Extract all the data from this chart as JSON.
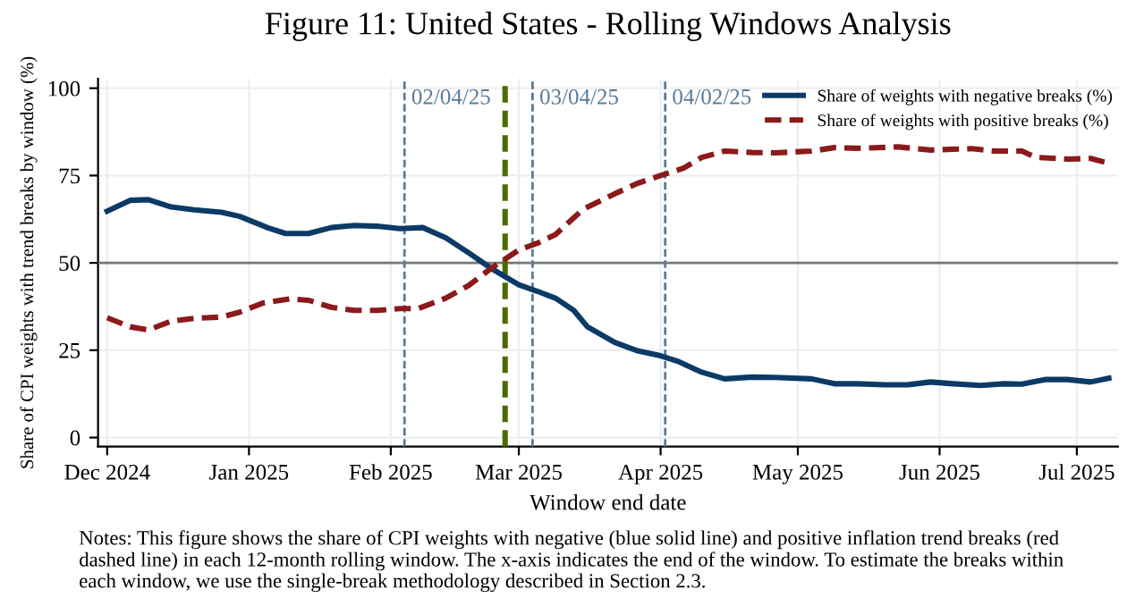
{
  "chart_data": {
    "type": "line",
    "title": "Figure 11: United States - Rolling Windows Analysis",
    "xlabel": "Window end date",
    "ylabel": "Share of CPI weights with trend breaks by window (%)",
    "series": [
      {
        "name": "Share of weights with negative breaks (%)",
        "color": "#0b3a66",
        "line_style": "solid",
        "x": [
          "2024-12-01",
          "2024-12-06",
          "2024-12-10",
          "2024-12-15",
          "2024-12-20",
          "2024-12-26",
          "2024-12-30",
          "2025-01-05",
          "2025-01-09",
          "2025-01-14",
          "2025-01-19",
          "2025-01-24",
          "2025-01-29",
          "2025-02-03",
          "2025-02-08",
          "2025-02-13",
          "2025-02-18",
          "2025-02-23",
          "2025-03-01",
          "2025-03-05",
          "2025-03-09",
          "2025-03-13",
          "2025-03-16",
          "2025-03-22",
          "2025-03-27",
          "2025-04-01",
          "2025-04-05",
          "2025-04-10",
          "2025-04-15",
          "2025-04-21",
          "2025-04-26",
          "2025-05-04",
          "2025-05-09",
          "2025-05-14",
          "2025-05-20",
          "2025-05-25",
          "2025-05-30",
          "2025-06-04",
          "2025-06-10",
          "2025-06-15",
          "2025-06-19",
          "2025-06-24",
          "2025-06-29",
          "2025-07-04",
          "2025-07-08"
        ],
        "values": [
          64.8,
          67.9,
          68.1,
          66,
          65.2,
          64.5,
          63.3,
          60.1,
          58.4,
          58.4,
          60.1,
          60.7,
          60.5,
          59.8,
          60.1,
          57.2,
          52.9,
          48.4,
          43.7,
          41.9,
          39.9,
          36.4,
          31.7,
          27.2,
          24.8,
          23.4,
          21.7,
          18.7,
          16.8,
          17.3,
          17.2,
          16.8,
          15.4,
          15.4,
          15.1,
          15.1,
          15.9,
          15.4,
          14.9,
          15.4,
          15.3,
          16.6,
          16.6,
          15.9,
          17
        ]
      },
      {
        "name": "Share of weights with positive breaks (%)",
        "color": "#8b1a1a",
        "line_style": "dashed",
        "x": [
          "2024-12-01",
          "2024-12-06",
          "2024-12-10",
          "2024-12-15",
          "2024-12-20",
          "2024-12-26",
          "2024-12-30",
          "2025-01-04",
          "2025-01-10",
          "2025-01-14",
          "2025-01-19",
          "2025-01-24",
          "2025-01-29",
          "2025-02-03",
          "2025-02-07",
          "2025-02-13",
          "2025-02-18",
          "2025-02-23",
          "2025-03-01",
          "2025-03-05",
          "2025-03-09",
          "2025-03-15",
          "2025-03-22",
          "2025-03-27",
          "2025-04-01",
          "2025-04-06",
          "2025-04-10",
          "2025-04-15",
          "2025-04-21",
          "2025-04-26",
          "2025-05-04",
          "2025-05-09",
          "2025-05-14",
          "2025-05-23",
          "2025-05-30",
          "2025-06-08",
          "2025-06-13",
          "2025-06-19",
          "2025-06-22",
          "2025-06-29",
          "2025-07-04",
          "2025-07-08"
        ],
        "values": [
          34.3,
          31.7,
          30.8,
          33.3,
          34.1,
          34.5,
          35.9,
          38.5,
          39.7,
          39.3,
          37.3,
          36.4,
          36.4,
          36.9,
          36.9,
          39.9,
          43.5,
          48.5,
          53.7,
          55.6,
          58.1,
          65.3,
          69.8,
          72.8,
          75,
          77.1,
          80.2,
          82,
          81.6,
          81.5,
          82,
          83,
          82.8,
          83.2,
          82.3,
          82.7,
          82,
          82,
          80.2,
          79.7,
          79.9,
          78.5
        ]
      }
    ],
    "xlim": [
      "2024-11-29",
      "2025-07-10"
    ],
    "xticks": [
      {
        "value": "2024-12-01",
        "label": "Dec 2024"
      },
      {
        "value": "2025-01-01",
        "label": "Jan 2025"
      },
      {
        "value": "2025-02-01",
        "label": "Feb 2025"
      },
      {
        "value": "2025-03-01",
        "label": "Mar 2025"
      },
      {
        "value": "2025-04-01",
        "label": "Apr 2025"
      },
      {
        "value": "2025-05-01",
        "label": "May 2025"
      },
      {
        "value": "2025-06-01",
        "label": "Jun 2025"
      },
      {
        "value": "2025-07-01",
        "label": "Jul 2025"
      }
    ],
    "ylim": [
      -2.6,
      102.7
    ],
    "yticks": [
      0,
      25,
      50,
      75,
      100
    ],
    "ref_lines": [
      {
        "axis": "y",
        "value": 50,
        "label": null,
        "color": "#777777",
        "line_style": "solid"
      },
      {
        "axis": "x",
        "value": "2025-02-04",
        "label": "02/04/25",
        "color": "#5a7a99",
        "line_style": "dashed"
      },
      {
        "axis": "x",
        "value": "2025-02-26",
        "label": null,
        "color": "#4d6b00",
        "line_style": "dashed"
      },
      {
        "axis": "x",
        "value": "2025-03-04",
        "label": "03/04/25",
        "color": "#5a7a99",
        "line_style": "dashed"
      },
      {
        "axis": "x",
        "value": "2025-04-02",
        "label": "04/02/25",
        "color": "#5a7a99",
        "line_style": "dashed"
      }
    ],
    "grid": true,
    "legend": "top right",
    "annotations": [
      "Notes: This figure shows the share of CPI weights with negative (blue solid line) and positive inflation trend breaks (red dashed line) in each 12-month rolling window. The x-axis indicates the end of the window. To estimate the breaks within each window, we use the single-break methodology described in Section 2.3."
    ]
  }
}
